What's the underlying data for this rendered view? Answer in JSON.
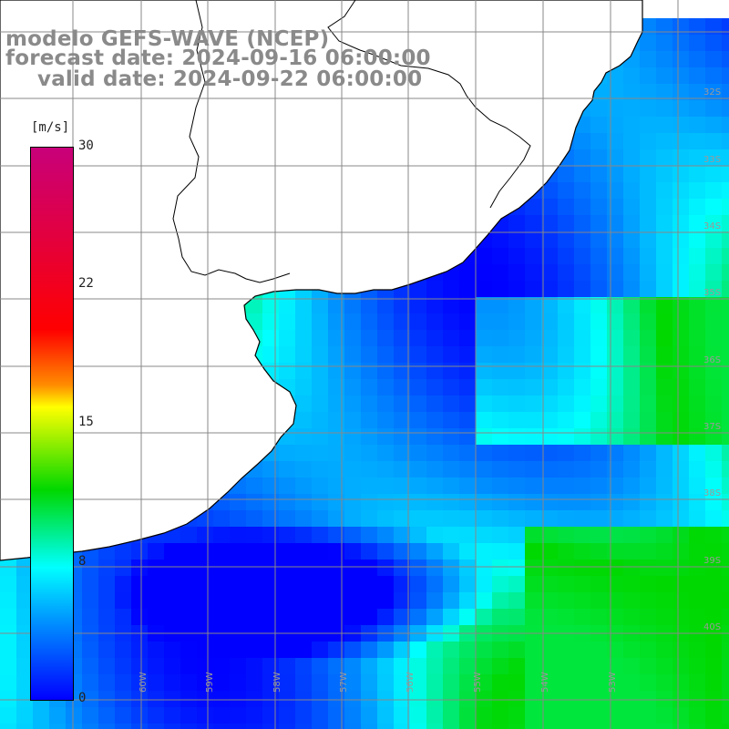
{
  "header": {
    "line1": "modelo GEFS-WAVE (NCEP)",
    "line2": "forecast date: 2024-09-16 06:00:00",
    "line3": "valid date: 2024-09-22 06:00:00"
  },
  "colorbar": {
    "unit": "[m/s]",
    "ticks": [
      "30",
      "22",
      "15",
      "8",
      "0"
    ],
    "colors": [
      "#c8007a",
      "#ff0000",
      "#ff8c00",
      "#ffff00",
      "#00d800",
      "#00ffff",
      "#0090ff",
      "#0000ff"
    ]
  },
  "map": {
    "lat_labels": [
      "32S",
      "33S",
      "34S",
      "35S",
      "36S",
      "37S",
      "38S",
      "39S",
      "40S"
    ],
    "lon_labels": [
      "60W",
      "59W",
      "58W",
      "57W",
      "56W",
      "55W",
      "54W",
      "53W"
    ],
    "land_color": "#ffffff",
    "grid_color": "#888888"
  }
}
